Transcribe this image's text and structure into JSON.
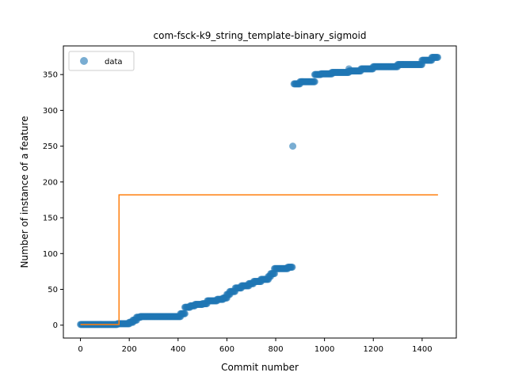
{
  "chart_data": {
    "type": "scatter",
    "title": "com-fsck-k9_string_template-binary_sigmoid",
    "xlabel": "Commit number",
    "ylabel": "Number of instance of a feature",
    "xlim": [
      -70,
      1540
    ],
    "ylim": [
      -18,
      390
    ],
    "xticks": [
      0,
      200,
      400,
      600,
      800,
      1000,
      1200,
      1400
    ],
    "yticks": [
      0,
      50,
      100,
      150,
      200,
      250,
      300,
      350
    ],
    "grid": false,
    "legend": {
      "position": "top-left",
      "entries": [
        "data"
      ]
    },
    "colors": {
      "data": "#1f77b4",
      "fit": "#ff7f0e"
    },
    "series": [
      {
        "name": "data",
        "kind": "scatter",
        "runs": [
          [
            0,
            150,
            1
          ],
          [
            152,
            200,
            2
          ],
          [
            200,
            215,
            4
          ],
          [
            215,
            230,
            7
          ],
          [
            230,
            245,
            11
          ],
          [
            245,
            410,
            12
          ],
          [
            410,
            428,
            16
          ],
          [
            428,
            450,
            25
          ],
          [
            450,
            470,
            27
          ],
          [
            470,
            500,
            29
          ],
          [
            500,
            520,
            30
          ],
          [
            520,
            560,
            34
          ],
          [
            560,
            585,
            36
          ],
          [
            585,
            600,
            38
          ],
          [
            600,
            612,
            43
          ],
          [
            612,
            635,
            47
          ],
          [
            635,
            660,
            52
          ],
          [
            660,
            690,
            55
          ],
          [
            690,
            710,
            58
          ],
          [
            710,
            740,
            61
          ],
          [
            740,
            770,
            64
          ],
          [
            770,
            780,
            68
          ],
          [
            780,
            795,
            72
          ],
          [
            795,
            850,
            79
          ],
          [
            850,
            868,
            81
          ],
          [
            875,
            900,
            337
          ],
          [
            900,
            960,
            340
          ],
          [
            960,
            985,
            350
          ],
          [
            985,
            1030,
            351
          ],
          [
            1030,
            1100,
            353
          ],
          [
            1100,
            1150,
            355
          ],
          [
            1150,
            1200,
            358
          ],
          [
            1200,
            1300,
            361
          ],
          [
            1300,
            1400,
            364
          ],
          [
            1400,
            1440,
            370
          ],
          [
            1440,
            1465,
            374
          ]
        ],
        "points": [
          [
            870,
            250
          ],
          [
            1100,
            358
          ]
        ]
      },
      {
        "name": "",
        "kind": "step",
        "points": [
          [
            0,
            1
          ],
          [
            158,
            1
          ],
          [
            158,
            182
          ],
          [
            1465,
            182
          ]
        ]
      }
    ]
  }
}
